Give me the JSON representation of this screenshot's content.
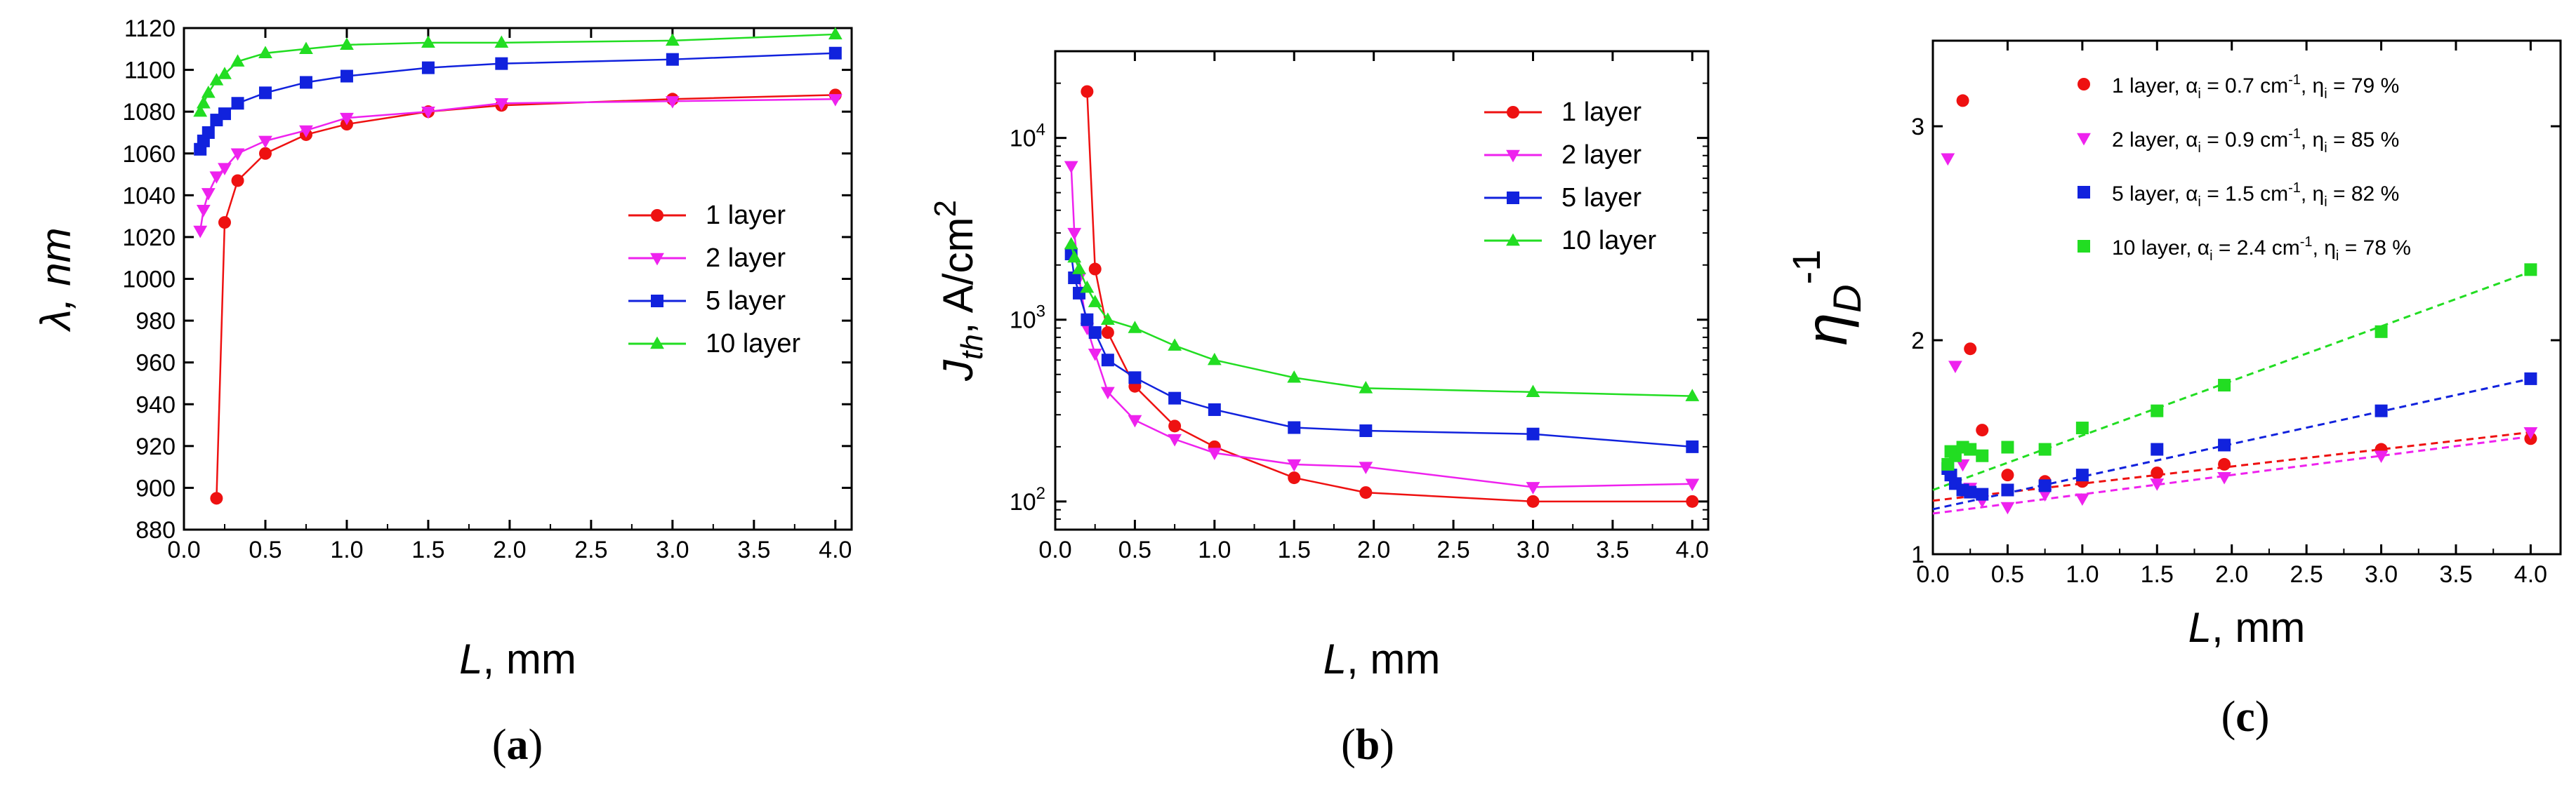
{
  "chart_data": [
    {
      "type": "line",
      "panel_label": "(a)",
      "panel_letter": "a",
      "ylabel": "λ, nm",
      "xlabel_var": "L",
      "xlabel_unit": ", mm",
      "xlim": [
        0.0,
        4.1
      ],
      "ylim": [
        880,
        1120
      ],
      "yscale": "linear",
      "xticks": [
        "0.0",
        "0.5",
        "1.0",
        "1.5",
        "2.0",
        "2.5",
        "3.0",
        "3.5",
        "4.0"
      ],
      "yticks": [
        "880",
        "900",
        "920",
        "940",
        "960",
        "980",
        "1000",
        "1020",
        "1040",
        "1060",
        "1080",
        "1100",
        "1120"
      ],
      "legend_position": "center-right",
      "series": [
        {
          "name": "1 layer",
          "color": "#ee1111",
          "marker": "circle",
          "x": [
            0.2,
            0.25,
            0.33,
            0.5,
            0.75,
            1.0,
            1.5,
            1.95,
            3.0,
            4.0
          ],
          "y": [
            895,
            1027,
            1047,
            1060,
            1069,
            1074,
            1080,
            1083,
            1086,
            1088
          ]
        },
        {
          "name": "2 layer",
          "color": "#ee22ee",
          "marker": "triangle-down",
          "x": [
            0.1,
            0.12,
            0.15,
            0.2,
            0.25,
            0.33,
            0.5,
            0.75,
            1.0,
            1.5,
            1.95,
            3.0,
            4.0
          ],
          "y": [
            1023,
            1033,
            1041,
            1049,
            1053,
            1060,
            1066,
            1071,
            1077,
            1080,
            1084,
            1085,
            1086
          ]
        },
        {
          "name": "5 layer",
          "color": "#1122dd",
          "marker": "square",
          "x": [
            0.1,
            0.12,
            0.15,
            0.2,
            0.25,
            0.33,
            0.5,
            0.75,
            1.0,
            1.5,
            1.95,
            3.0,
            4.0
          ],
          "y": [
            1062,
            1066,
            1070,
            1076,
            1079,
            1084,
            1089,
            1094,
            1097,
            1101,
            1103,
            1105,
            1108
          ]
        },
        {
          "name": "10 layer",
          "color": "#22dd22",
          "marker": "triangle-up",
          "x": [
            0.1,
            0.12,
            0.15,
            0.2,
            0.25,
            0.33,
            0.5,
            0.75,
            1.0,
            1.5,
            1.95,
            3.0,
            4.0
          ],
          "y": [
            1080,
            1084,
            1089,
            1095,
            1098,
            1104,
            1108,
            1110,
            1112,
            1113,
            1113,
            1114,
            1117
          ]
        }
      ]
    },
    {
      "type": "line",
      "panel_label": "(b)",
      "panel_letter": "b",
      "ylabel": "J",
      "ylabel_sub": "th",
      "ylabel_rest": ", A/cm",
      "ylabel_sup": "2",
      "xlabel_var": "L",
      "xlabel_unit": ", mm",
      "xlim": [
        0.0,
        4.1
      ],
      "ylim": [
        70,
        30000
      ],
      "yscale": "log",
      "xticks": [
        "0.0",
        "0.5",
        "1.0",
        "1.5",
        "2.0",
        "2.5",
        "3.0",
        "3.5",
        "4.0"
      ],
      "yticks": [
        {
          "base": "10",
          "exp": "2",
          "value": 100
        },
        {
          "base": "10",
          "exp": "3",
          "value": 1000
        },
        {
          "base": "10",
          "exp": "4",
          "value": 10000
        }
      ],
      "legend_position": "top-right",
      "series": [
        {
          "name": "1 layer",
          "color": "#ee1111",
          "marker": "circle",
          "x": [
            0.2,
            0.25,
            0.33,
            0.5,
            0.75,
            1.0,
            1.5,
            1.95,
            3.0,
            4.0
          ],
          "y": [
            18000,
            1900,
            850,
            430,
            260,
            200,
            135,
            112,
            100,
            100
          ]
        },
        {
          "name": "2 layer",
          "color": "#ee22ee",
          "marker": "triangle-down",
          "x": [
            0.1,
            0.12,
            0.15,
            0.2,
            0.25,
            0.33,
            0.5,
            0.75,
            1.0,
            1.5,
            1.95,
            3.0,
            4.0
          ],
          "y": [
            7000,
            3000,
            1700,
            900,
            650,
            400,
            280,
            220,
            185,
            160,
            155,
            120,
            125
          ]
        },
        {
          "name": "5 layer",
          "color": "#1122dd",
          "marker": "square",
          "x": [
            0.1,
            0.12,
            0.15,
            0.2,
            0.25,
            0.33,
            0.5,
            0.75,
            1.0,
            1.5,
            1.95,
            3.0,
            4.0
          ],
          "y": [
            2300,
            1700,
            1400,
            1000,
            850,
            600,
            480,
            370,
            320,
            255,
            245,
            235,
            200
          ]
        },
        {
          "name": "10 layer",
          "color": "#22dd22",
          "marker": "triangle-up",
          "x": [
            0.1,
            0.12,
            0.15,
            0.2,
            0.25,
            0.33,
            0.5,
            0.75,
            1.0,
            1.5,
            1.95,
            3.0,
            4.0
          ],
          "y": [
            2600,
            2200,
            1900,
            1500,
            1250,
            1000,
            900,
            720,
            600,
            480,
            420,
            400,
            380
          ]
        }
      ]
    },
    {
      "type": "scatter",
      "panel_label": "(c)",
      "panel_letter": "c",
      "ylabel": "η",
      "ylabel_sub": "D",
      "ylabel_sup": "-1",
      "xlabel_var": "L",
      "xlabel_unit": ", mm",
      "xlim": [
        0.0,
        4.2
      ],
      "ylim": [
        1.0,
        3.4
      ],
      "yscale": "linear",
      "xticks": [
        "0.0",
        "0.5",
        "1.0",
        "1.5",
        "2.0",
        "2.5",
        "3.0",
        "3.5",
        "4.0"
      ],
      "yticks": [
        "1",
        "2",
        "3"
      ],
      "legend_position": "top-right",
      "series": [
        {
          "name": "1 layer",
          "alpha_i": "0.7",
          "eta_i": "79",
          "color": "#ee1111",
          "marker": "circle",
          "x": [
            0.2,
            0.25,
            0.33,
            0.5,
            0.75,
            1.0,
            1.5,
            1.95,
            3.0,
            4.0
          ],
          "y": [
            3.12,
            1.96,
            1.58,
            1.37,
            1.34,
            1.34,
            1.38,
            1.42,
            1.49,
            1.54
          ],
          "fit": {
            "x0": 0.0,
            "y0": 1.25,
            "x1": 4.0,
            "y1": 1.57
          }
        },
        {
          "name": "2 layer",
          "alpha_i": "0.9",
          "eta_i": "85",
          "color": "#ee22ee",
          "marker": "triangle-down",
          "x": [
            0.1,
            0.15,
            0.2,
            0.25,
            0.33,
            0.5,
            0.75,
            1.0,
            1.5,
            1.95,
            3.0,
            4.0
          ],
          "y": [
            2.85,
            1.88,
            1.42,
            1.31,
            1.25,
            1.22,
            1.28,
            1.26,
            1.33,
            1.36,
            1.46,
            1.57
          ],
          "fit": {
            "x0": 0.0,
            "y0": 1.19,
            "x1": 4.0,
            "y1": 1.55
          }
        },
        {
          "name": "5 layer",
          "alpha_i": "1.5",
          "eta_i": "82",
          "color": "#1122dd",
          "marker": "square",
          "x": [
            0.1,
            0.12,
            0.15,
            0.2,
            0.25,
            0.33,
            0.5,
            0.75,
            1.0,
            1.5,
            1.95,
            3.0,
            4.0
          ],
          "y": [
            1.4,
            1.37,
            1.33,
            1.3,
            1.29,
            1.28,
            1.3,
            1.32,
            1.37,
            1.49,
            1.51,
            1.67,
            1.82
          ],
          "fit": {
            "x0": 0.0,
            "y0": 1.21,
            "x1": 4.0,
            "y1": 1.82
          }
        },
        {
          "name": "10 layer",
          "alpha_i": "2.4",
          "eta_i": "78",
          "color": "#22dd22",
          "marker": "square",
          "x": [
            0.1,
            0.12,
            0.15,
            0.2,
            0.25,
            0.33,
            0.5,
            0.75,
            1.0,
            1.5,
            1.95,
            3.0,
            4.0
          ],
          "y": [
            1.42,
            1.48,
            1.46,
            1.5,
            1.49,
            1.46,
            1.5,
            1.49,
            1.59,
            1.67,
            1.79,
            2.04,
            2.33
          ],
          "fit": {
            "x0": 0.0,
            "y0": 1.3,
            "x1": 4.0,
            "y1": 2.32
          }
        }
      ]
    }
  ]
}
